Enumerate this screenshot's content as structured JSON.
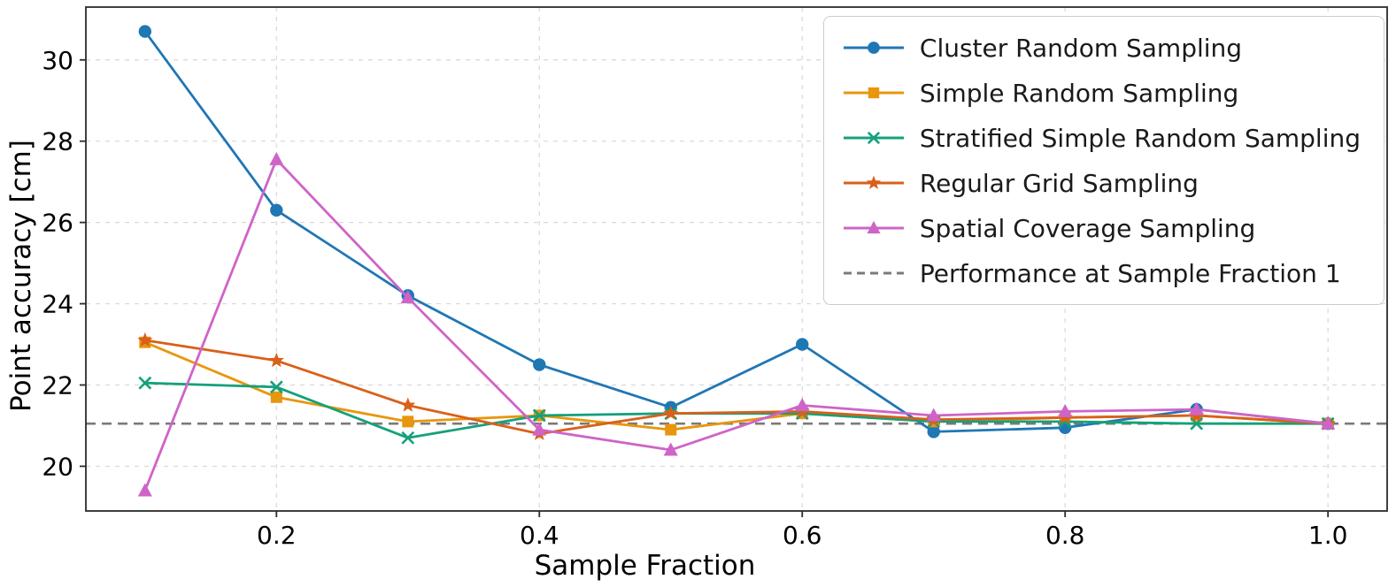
{
  "chart_data": {
    "type": "line",
    "title": "",
    "xlabel": "Sample Fraction",
    "ylabel": "Point accuracy [cm]",
    "x": [
      0.1,
      0.2,
      0.3,
      0.4,
      0.5,
      0.6,
      0.7,
      0.8,
      0.9,
      1.0
    ],
    "xlim": [
      0.055,
      1.045
    ],
    "ylim": [
      18.9,
      31.3
    ],
    "xticks": [
      0.2,
      0.4,
      0.6,
      0.8,
      1.0
    ],
    "xtick_labels": [
      "0.2",
      "0.4",
      "0.6",
      "0.8",
      "1.0"
    ],
    "yticks": [
      20,
      22,
      24,
      26,
      28,
      30
    ],
    "ytick_labels": [
      "20",
      "22",
      "24",
      "26",
      "28",
      "30"
    ],
    "grid": "dashed-both-axes",
    "legend_position": "upper-right",
    "series": [
      {
        "name": "Cluster Random Sampling",
        "color": "#1f77b4",
        "marker": "circle",
        "values": [
          30.7,
          26.3,
          24.2,
          22.5,
          21.45,
          23.0,
          20.85,
          20.95,
          21.4,
          21.05
        ]
      },
      {
        "name": "Simple Random Sampling",
        "color": "#e8960d",
        "marker": "square",
        "values": [
          23.05,
          21.7,
          21.1,
          21.25,
          20.9,
          21.3,
          21.1,
          21.2,
          21.25,
          21.05
        ]
      },
      {
        "name": "Stratified Simple Random Sampling",
        "color": "#14a17b",
        "marker": "x",
        "values": [
          22.05,
          21.95,
          20.7,
          21.25,
          21.3,
          21.3,
          21.1,
          21.1,
          21.05,
          21.05
        ]
      },
      {
        "name": "Regular Grid Sampling",
        "color": "#d9601a",
        "marker": "star",
        "values": [
          23.1,
          22.6,
          21.5,
          20.8,
          21.3,
          21.35,
          21.15,
          21.2,
          21.25,
          21.05
        ]
      },
      {
        "name": "Spatial Coverage Sampling",
        "color": "#ce64c8",
        "marker": "triangle",
        "values": [
          19.4,
          27.55,
          24.15,
          20.9,
          20.4,
          21.5,
          21.25,
          21.35,
          21.4,
          21.05
        ]
      }
    ],
    "reference_line": {
      "name": "Performance at Sample Fraction 1",
      "value": 21.05,
      "color": "#7a7a7a",
      "style": "dashed"
    },
    "style": {
      "grid_color": "#d8d8d8",
      "spine_color": "#2b2b2b",
      "tick_label_color": "#000000",
      "background": "#ffffff"
    }
  }
}
